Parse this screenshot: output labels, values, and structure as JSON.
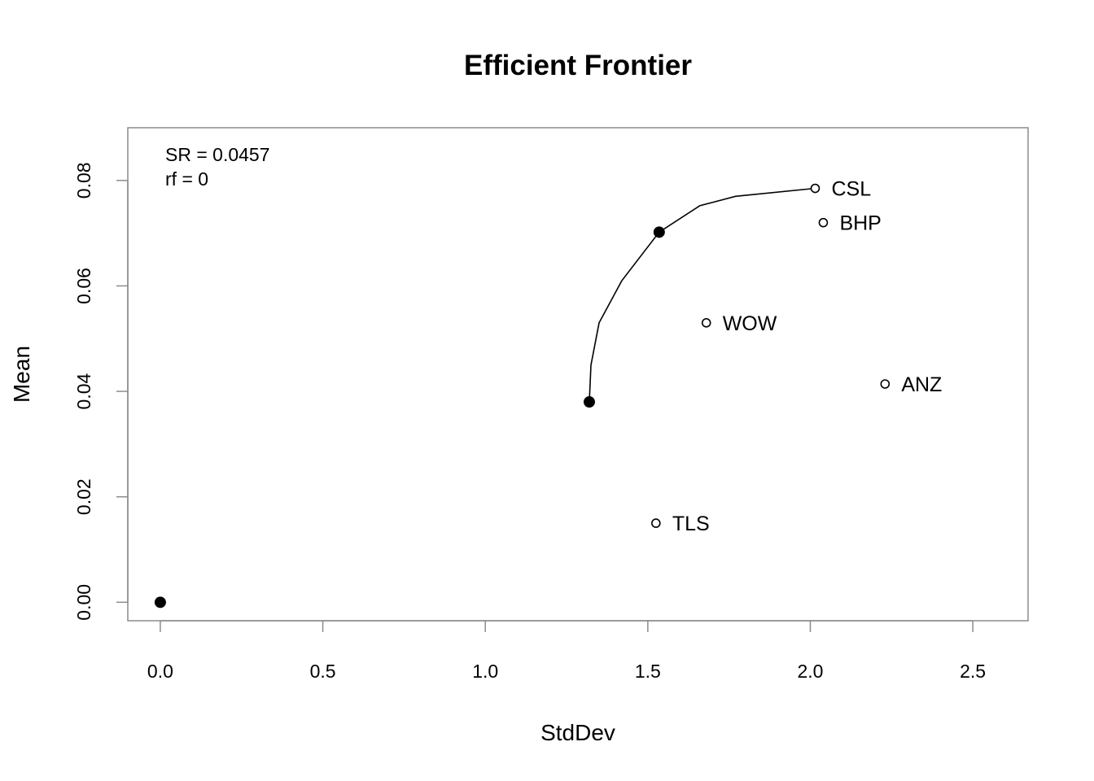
{
  "chart_data": {
    "type": "scatter",
    "title": "Efficient Frontier",
    "xlabel": "StdDev",
    "ylabel": "Mean",
    "xlim": [
      -0.1,
      2.67
    ],
    "ylim": [
      -0.0035,
      0.09
    ],
    "x_ticks": [
      0.0,
      0.5,
      1.0,
      1.5,
      2.0,
      2.5
    ],
    "x_tick_labels": [
      "0.0",
      "0.5",
      "1.0",
      "1.5",
      "2.0",
      "2.5"
    ],
    "y_ticks": [
      0.0,
      0.02,
      0.04,
      0.06,
      0.08
    ],
    "y_tick_labels": [
      "0.00",
      "0.02",
      "0.04",
      "0.06",
      "0.08"
    ],
    "grid": false,
    "annotations": [
      "SR = 0.0457",
      "rf = 0"
    ],
    "assets": [
      {
        "label": "CSL",
        "x": 2.015,
        "y": 0.0785
      },
      {
        "label": "BHP",
        "x": 2.04,
        "y": 0.072
      },
      {
        "label": "WOW",
        "x": 1.68,
        "y": 0.053
      },
      {
        "label": "ANZ",
        "x": 2.23,
        "y": 0.0414
      },
      {
        "label": "TLS",
        "x": 1.525,
        "y": 0.015
      }
    ],
    "frontier": [
      {
        "x": 1.32,
        "y": 0.038
      },
      {
        "x": 1.325,
        "y": 0.045
      },
      {
        "x": 1.35,
        "y": 0.053
      },
      {
        "x": 1.42,
        "y": 0.061
      },
      {
        "x": 1.535,
        "y": 0.0702
      },
      {
        "x": 1.66,
        "y": 0.0752
      },
      {
        "x": 1.77,
        "y": 0.077
      },
      {
        "x": 2.015,
        "y": 0.0785
      }
    ],
    "highlighted_points": [
      {
        "name": "min-variance",
        "x": 1.32,
        "y": 0.038
      },
      {
        "name": "tangency",
        "x": 1.535,
        "y": 0.0702
      },
      {
        "name": "risk-free",
        "x": 0.0,
        "y": 0.0
      }
    ]
  }
}
